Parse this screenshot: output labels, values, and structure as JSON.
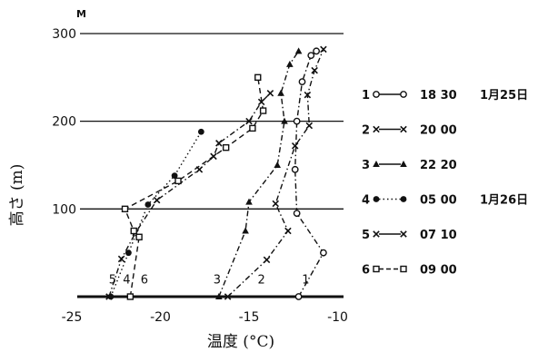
{
  "chart_data": {
    "type": "line",
    "ylabel": "高さ (m)",
    "ylabel_unit": "M",
    "xlabel": "温度 (°C)",
    "xlim": [
      -26,
      -9
    ],
    "ylim": [
      0,
      300
    ],
    "xticks": [
      -25,
      -20,
      -15,
      -10
    ],
    "xtick_labels": [
      "-25",
      "-20",
      "-15",
      "-10"
    ],
    "yticks": [
      100,
      200,
      300
    ],
    "ytick_labels": [
      "100",
      "200",
      "300"
    ],
    "grid": "horizontal",
    "series": [
      {
        "name": "1",
        "marker": "circle-open",
        "linestyle": "dash-dot",
        "time": "18 30",
        "date": "1月25日",
        "points": [
          [
            -12.2,
            0
          ],
          [
            -10.8,
            50
          ],
          [
            -12.3,
            95
          ],
          [
            -12.4,
            145
          ],
          [
            -12.3,
            200
          ],
          [
            -12.0,
            245
          ],
          [
            -11.5,
            275
          ],
          [
            -11.2,
            280
          ]
        ]
      },
      {
        "name": "2",
        "marker": "x",
        "linestyle": "dash-dot",
        "time": "20 00",
        "date": "",
        "points": [
          [
            -16.2,
            0
          ],
          [
            -14.0,
            42
          ],
          [
            -12.8,
            75
          ],
          [
            -13.5,
            106
          ],
          [
            -12.4,
            172
          ],
          [
            -11.6,
            195
          ],
          [
            -11.7,
            230
          ],
          [
            -11.3,
            258
          ],
          [
            -10.8,
            282
          ]
        ]
      },
      {
        "name": "3",
        "marker": "triangle",
        "linestyle": "dash-dot",
        "time": "22 20",
        "date": "",
        "points": [
          [
            -16.7,
            0
          ],
          [
            -15.2,
            75
          ],
          [
            -15.0,
            108
          ],
          [
            -13.4,
            150
          ],
          [
            -13.0,
            200
          ],
          [
            -13.2,
            232
          ],
          [
            -12.7,
            265
          ],
          [
            -12.2,
            280
          ]
        ]
      },
      {
        "name": "4",
        "marker": "dot",
        "linestyle": "dotted",
        "time": "05 00",
        "date": "1月26日",
        "points": [
          [
            -22.8,
            0
          ],
          [
            -21.8,
            50
          ],
          [
            -20.7,
            105
          ],
          [
            -19.2,
            138
          ],
          [
            -17.7,
            188
          ]
        ]
      },
      {
        "name": "5",
        "marker": "x",
        "linestyle": "dash-dot",
        "time": "07 10",
        "date": "",
        "points": [
          [
            -22.9,
            0
          ],
          [
            -22.2,
            43
          ],
          [
            -21.4,
            73
          ],
          [
            -20.2,
            110
          ],
          [
            -17.8,
            145
          ],
          [
            -17.0,
            160
          ],
          [
            -16.7,
            175
          ],
          [
            -15.0,
            200
          ],
          [
            -14.3,
            222
          ],
          [
            -13.8,
            232
          ]
        ]
      },
      {
        "name": "6",
        "marker": "square-open",
        "linestyle": "dashed",
        "time": "09 00",
        "date": "",
        "points": [
          [
            -21.7,
            0
          ],
          [
            -21.2,
            68
          ],
          [
            -21.5,
            75
          ],
          [
            -22.0,
            100
          ],
          [
            -19.0,
            132
          ],
          [
            -16.3,
            170
          ],
          [
            -14.8,
            192
          ],
          [
            -14.2,
            212
          ],
          [
            -14.5,
            250
          ]
        ]
      }
    ],
    "curve_labels": [
      {
        "name": "5",
        "x": -22.7,
        "y": 20
      },
      {
        "name": "4",
        "x": -21.9,
        "y": 20
      },
      {
        "name": "6",
        "x": -20.9,
        "y": 20
      },
      {
        "name": "3",
        "x": -16.8,
        "y": 20
      },
      {
        "name": "2",
        "x": -14.3,
        "y": 20
      },
      {
        "name": "1",
        "x": -11.8,
        "y": 20
      }
    ]
  },
  "colors": {
    "ink": "#111111",
    "background": "#ffffff"
  }
}
